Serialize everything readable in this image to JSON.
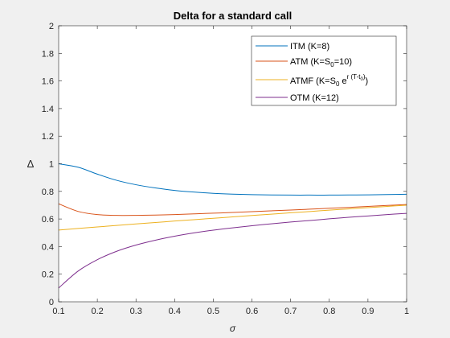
{
  "chart_data": {
    "type": "line",
    "title": "Delta for a standard call",
    "xlabel": "σ",
    "ylabel": "Δ",
    "xlim": [
      0.1,
      1
    ],
    "ylim": [
      0,
      2
    ],
    "xticks": [
      "0.1",
      "0.2",
      "0.3",
      "0.4",
      "0.5",
      "0.6",
      "0.7",
      "0.8",
      "0.9",
      "1"
    ],
    "yticks": [
      "0",
      "0.2",
      "0.4",
      "0.6",
      "0.8",
      "1",
      "1.2",
      "1.4",
      "1.6",
      "1.8",
      "2"
    ],
    "legend_position": "top-right",
    "x": [
      0.1,
      0.15,
      0.2,
      0.25,
      0.3,
      0.35,
      0.4,
      0.45,
      0.5,
      0.55,
      0.6,
      0.65,
      0.7,
      0.75,
      0.8,
      0.85,
      0.9,
      0.95,
      1.0
    ],
    "series": [
      {
        "name": "ITM (K=8)",
        "color": "#0072bd",
        "values": [
          1.0,
          0.975,
          0.925,
          0.88,
          0.848,
          0.825,
          0.807,
          0.795,
          0.786,
          0.78,
          0.776,
          0.774,
          0.773,
          0.773,
          0.773,
          0.774,
          0.775,
          0.777,
          0.779
        ]
      },
      {
        "name": "ATM (K=S",
        "name_sub": "0",
        "name_suffix": "=10)",
        "color": "#d95319",
        "values": [
          0.71,
          0.655,
          0.632,
          0.626,
          0.626,
          0.628,
          0.632,
          0.637,
          0.642,
          0.647,
          0.653,
          0.659,
          0.665,
          0.671,
          0.678,
          0.684,
          0.691,
          0.698,
          0.705
        ]
      },
      {
        "name": "ATMF (K=S",
        "name_sub": "0",
        "name_mid": " e",
        "name_sup": "r (T-t",
        "name_sup_sub": "0",
        "name_sup_end": ")",
        "name_suffix": ")",
        "color": "#edb120",
        "values": [
          0.52,
          0.531,
          0.542,
          0.553,
          0.564,
          0.574,
          0.585,
          0.595,
          0.605,
          0.615,
          0.625,
          0.635,
          0.645,
          0.654,
          0.664,
          0.673,
          0.682,
          0.691,
          0.7
        ]
      },
      {
        "name": "OTM (K=12)",
        "color": "#7e2f8e",
        "values": [
          0.1,
          0.222,
          0.305,
          0.366,
          0.411,
          0.446,
          0.475,
          0.499,
          0.519,
          0.536,
          0.551,
          0.565,
          0.578,
          0.589,
          0.601,
          0.612,
          0.622,
          0.632,
          0.641
        ]
      }
    ]
  }
}
